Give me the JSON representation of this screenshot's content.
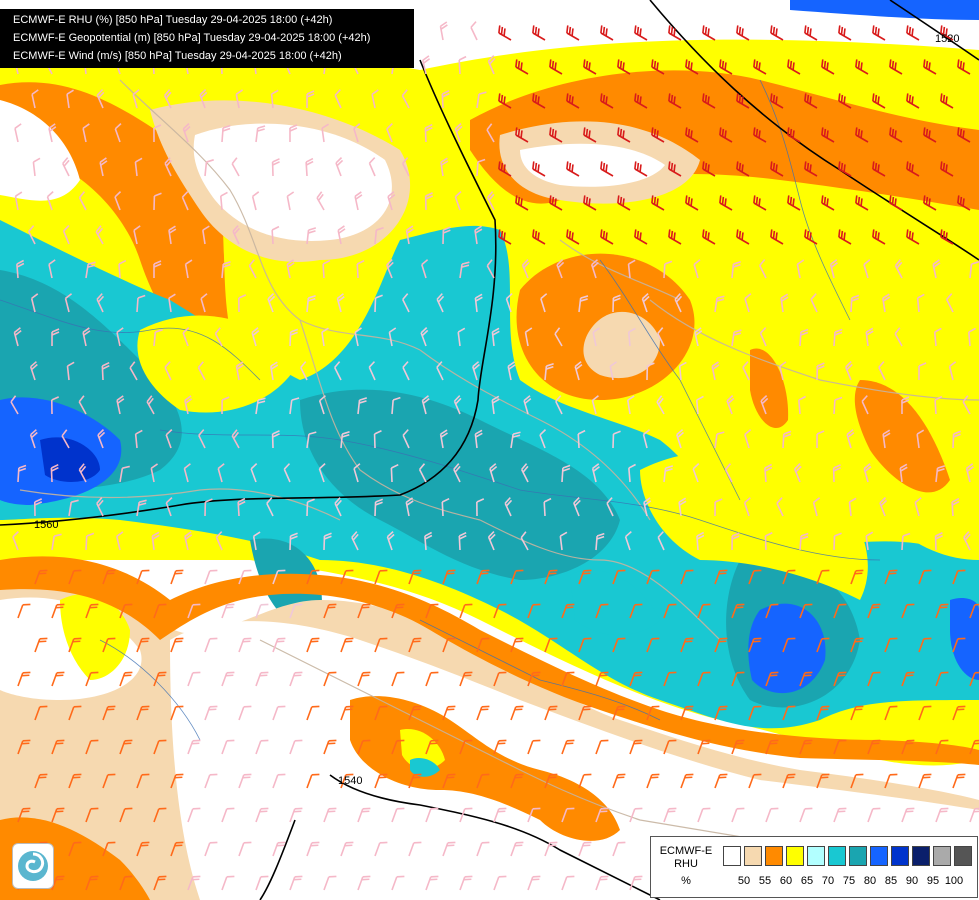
{
  "titles": [
    "ECMWF-E RHU (%) [850 hPa] Tuesday 29-04-2025 18:00 (+42h)",
    "ECMWF-E Geopotential (m) [850 hPa] Tuesday 29-04-2025 18:00 (+42h)",
    "ECMWF-E Wind (m/s) [850 hPa] Tuesday 29-04-2025 18:00 (+42h)"
  ],
  "legend": {
    "model": "ECMWF-E",
    "variable": "RHU",
    "unit": "%",
    "colors": [
      "#ffffff",
      "#f6d9b0",
      "#ff8a00",
      "#ffff00",
      "#b2ffff",
      "#19c8d2",
      "#1aa5b0",
      "#1564ff",
      "#0033cc",
      "#0a1f6b",
      "#aaaaaa",
      "#555555"
    ],
    "ticks": [
      "50",
      "55",
      "60",
      "65",
      "70",
      "75",
      "80",
      "85",
      "90",
      "95",
      "100"
    ]
  },
  "contour_labels": {
    "north_east": "1520",
    "west": "1560",
    "south": "1540"
  },
  "logo_icon": "model-logo-icon"
}
